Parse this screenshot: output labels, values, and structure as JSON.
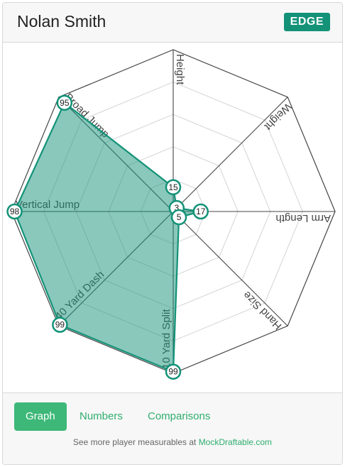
{
  "player": {
    "name": "Nolan Smith",
    "position": "EDGE"
  },
  "colors": {
    "accent": "#139278",
    "fill": "rgba(19,146,120,0.5)",
    "tab_active": "#3db878",
    "link": "#2fae6e"
  },
  "chart_data": {
    "type": "radar",
    "range": [
      0,
      100
    ],
    "axes": [
      {
        "label": "Height",
        "value": 15
      },
      {
        "label": "Weight",
        "value": 3
      },
      {
        "label": "Arm Length",
        "value": 17
      },
      {
        "label": "Hand Size",
        "value": 5
      },
      {
        "label": "10 Yard Split",
        "value": 99
      },
      {
        "label": "40 Yard Dash",
        "value": 99
      },
      {
        "label": "Vertical Jump",
        "value": 98
      },
      {
        "label": "Broad Jump",
        "value": 95
      }
    ]
  },
  "tabs": [
    {
      "label": "Graph",
      "active": true
    },
    {
      "label": "Numbers",
      "active": false
    },
    {
      "label": "Comparisons",
      "active": false
    }
  ],
  "footer": {
    "text": "See more player measurables at",
    "link_text": "MockDraftable.com"
  }
}
